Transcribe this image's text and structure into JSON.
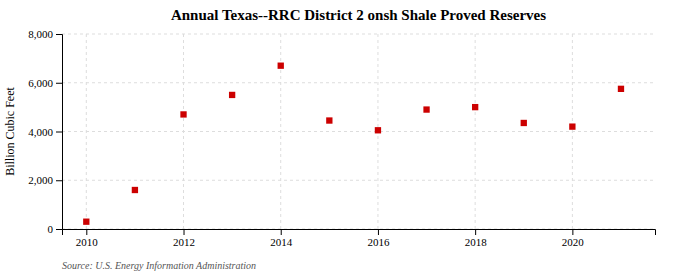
{
  "chart_data": {
    "type": "scatter",
    "title": "Annual Texas--RRC District 2 onsh Shale Proved Reserves",
    "ylabel": "Billion Cubic Feet",
    "source": "Source: U.S. Energy Information Administration",
    "x": [
      2010,
      2011,
      2012,
      2013,
      2014,
      2015,
      2016,
      2017,
      2018,
      2019,
      2020,
      2021
    ],
    "values": [
      300,
      1600,
      4700,
      5500,
      6700,
      4450,
      4050,
      4900,
      5000,
      4350,
      4200,
      5750
    ],
    "color": "#cc0000",
    "marker": "square",
    "xlim": [
      2009.5,
      2021.7
    ],
    "xticks": [
      2010,
      2012,
      2014,
      2016,
      2018,
      2020
    ],
    "ylim": [
      0,
      8000
    ],
    "yticks": [
      0,
      {
        "value": 2000,
        "label": "2,000"
      },
      {
        "value": 4000,
        "label": "4,000"
      },
      {
        "value": 6000,
        "label": "6,000"
      },
      {
        "value": 8000,
        "label": "8,000"
      }
    ],
    "grid": true
  }
}
